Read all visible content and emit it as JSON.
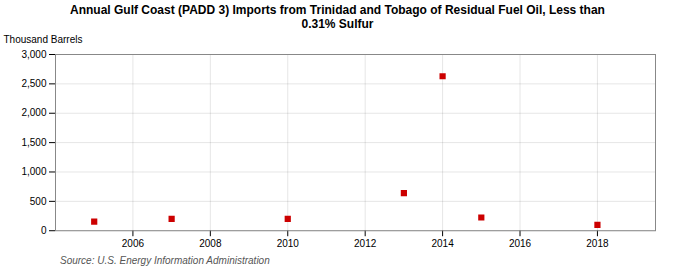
{
  "chart_data": {
    "type": "scatter",
    "title": "Annual Gulf Coast (PADD 3) Imports from Trinidad and Tobago of Residual Fuel Oil, Less than\n0.31% Sulfur",
    "ylabel": "Thousand Barrels",
    "source": "Source: U.S. Energy Information Administration",
    "x": [
      2005,
      2007,
      2010,
      2013,
      2014,
      2015,
      2018
    ],
    "values": [
      155,
      200,
      200,
      640,
      2630,
      225,
      100
    ],
    "color": "#cc0000",
    "marker": "square",
    "xlim": [
      2004.0,
      2019.5
    ],
    "xticks": [
      2006,
      2008,
      2010,
      2012,
      2014,
      2016,
      2018
    ],
    "ylim": [
      0,
      3000
    ],
    "yticks": [
      0,
      500,
      {
        "value": 1000,
        "label": "1,000"
      },
      {
        "value": 1500,
        "label": "1,500"
      },
      {
        "value": 2000,
        "label": "2,000"
      },
      {
        "value": 2500,
        "label": "2,500"
      },
      {
        "value": 3000,
        "label": "3,000"
      }
    ],
    "grid": true
  }
}
